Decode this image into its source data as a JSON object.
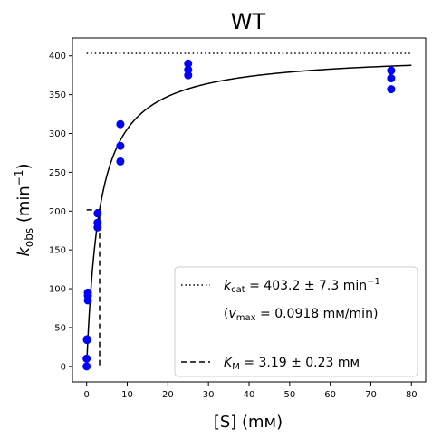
{
  "chart_data": {
    "type": "scatter",
    "title": "WT",
    "xlabel": "[S] (mм)",
    "ylabel": "k_obs (min⁻¹)",
    "xlim": [
      -3.5,
      83.5
    ],
    "ylim": [
      -20,
      423
    ],
    "x_ticks": [
      0,
      10,
      20,
      30,
      40,
      50,
      60,
      70,
      80
    ],
    "y_ticks": [
      0,
      50,
      100,
      150,
      200,
      250,
      300,
      350,
      400
    ],
    "grid": false,
    "legend_position": "lower-right",
    "colors": {
      "points": "#0000ff",
      "lines": "#000000"
    },
    "series": [
      {
        "type": "scatter",
        "x": [
          0,
          0,
          0.1,
          0.1,
          0.3,
          0.3,
          0.3,
          2.7,
          2.7,
          2.7,
          8.3,
          8.3,
          8.3,
          25,
          25,
          25,
          75,
          75,
          75
        ],
        "y": [
          0,
          10,
          34,
          35,
          85,
          91,
          95,
          179,
          185,
          197,
          264,
          284,
          312,
          375,
          382,
          390,
          357,
          371,
          381
        ]
      },
      {
        "type": "line",
        "function": "michaelis-menten",
        "kcat": 403.2,
        "km": 3.19,
        "x_range": [
          0,
          80
        ]
      },
      {
        "type": "hline",
        "style": "dotted",
        "y": 403.2,
        "x_range": [
          0,
          80
        ]
      },
      {
        "type": "vline-marker",
        "style": "dashed",
        "x": 3.19,
        "y": 201.6
      }
    ],
    "legend": {
      "kcat_label": "= 403.2 ± 7.3 min",
      "kcat_prefix": "k",
      "kcat_sub": "cat",
      "kcat_sup": "−1",
      "vmax_label": "= 0.0918 mм/min)",
      "vmax_open": "(",
      "vmax_prefix": "v",
      "vmax_sub": "max",
      "km_prefix": "K",
      "km_sub": "M",
      "km_label": "= 3.19 ± 0.23 mм"
    }
  }
}
